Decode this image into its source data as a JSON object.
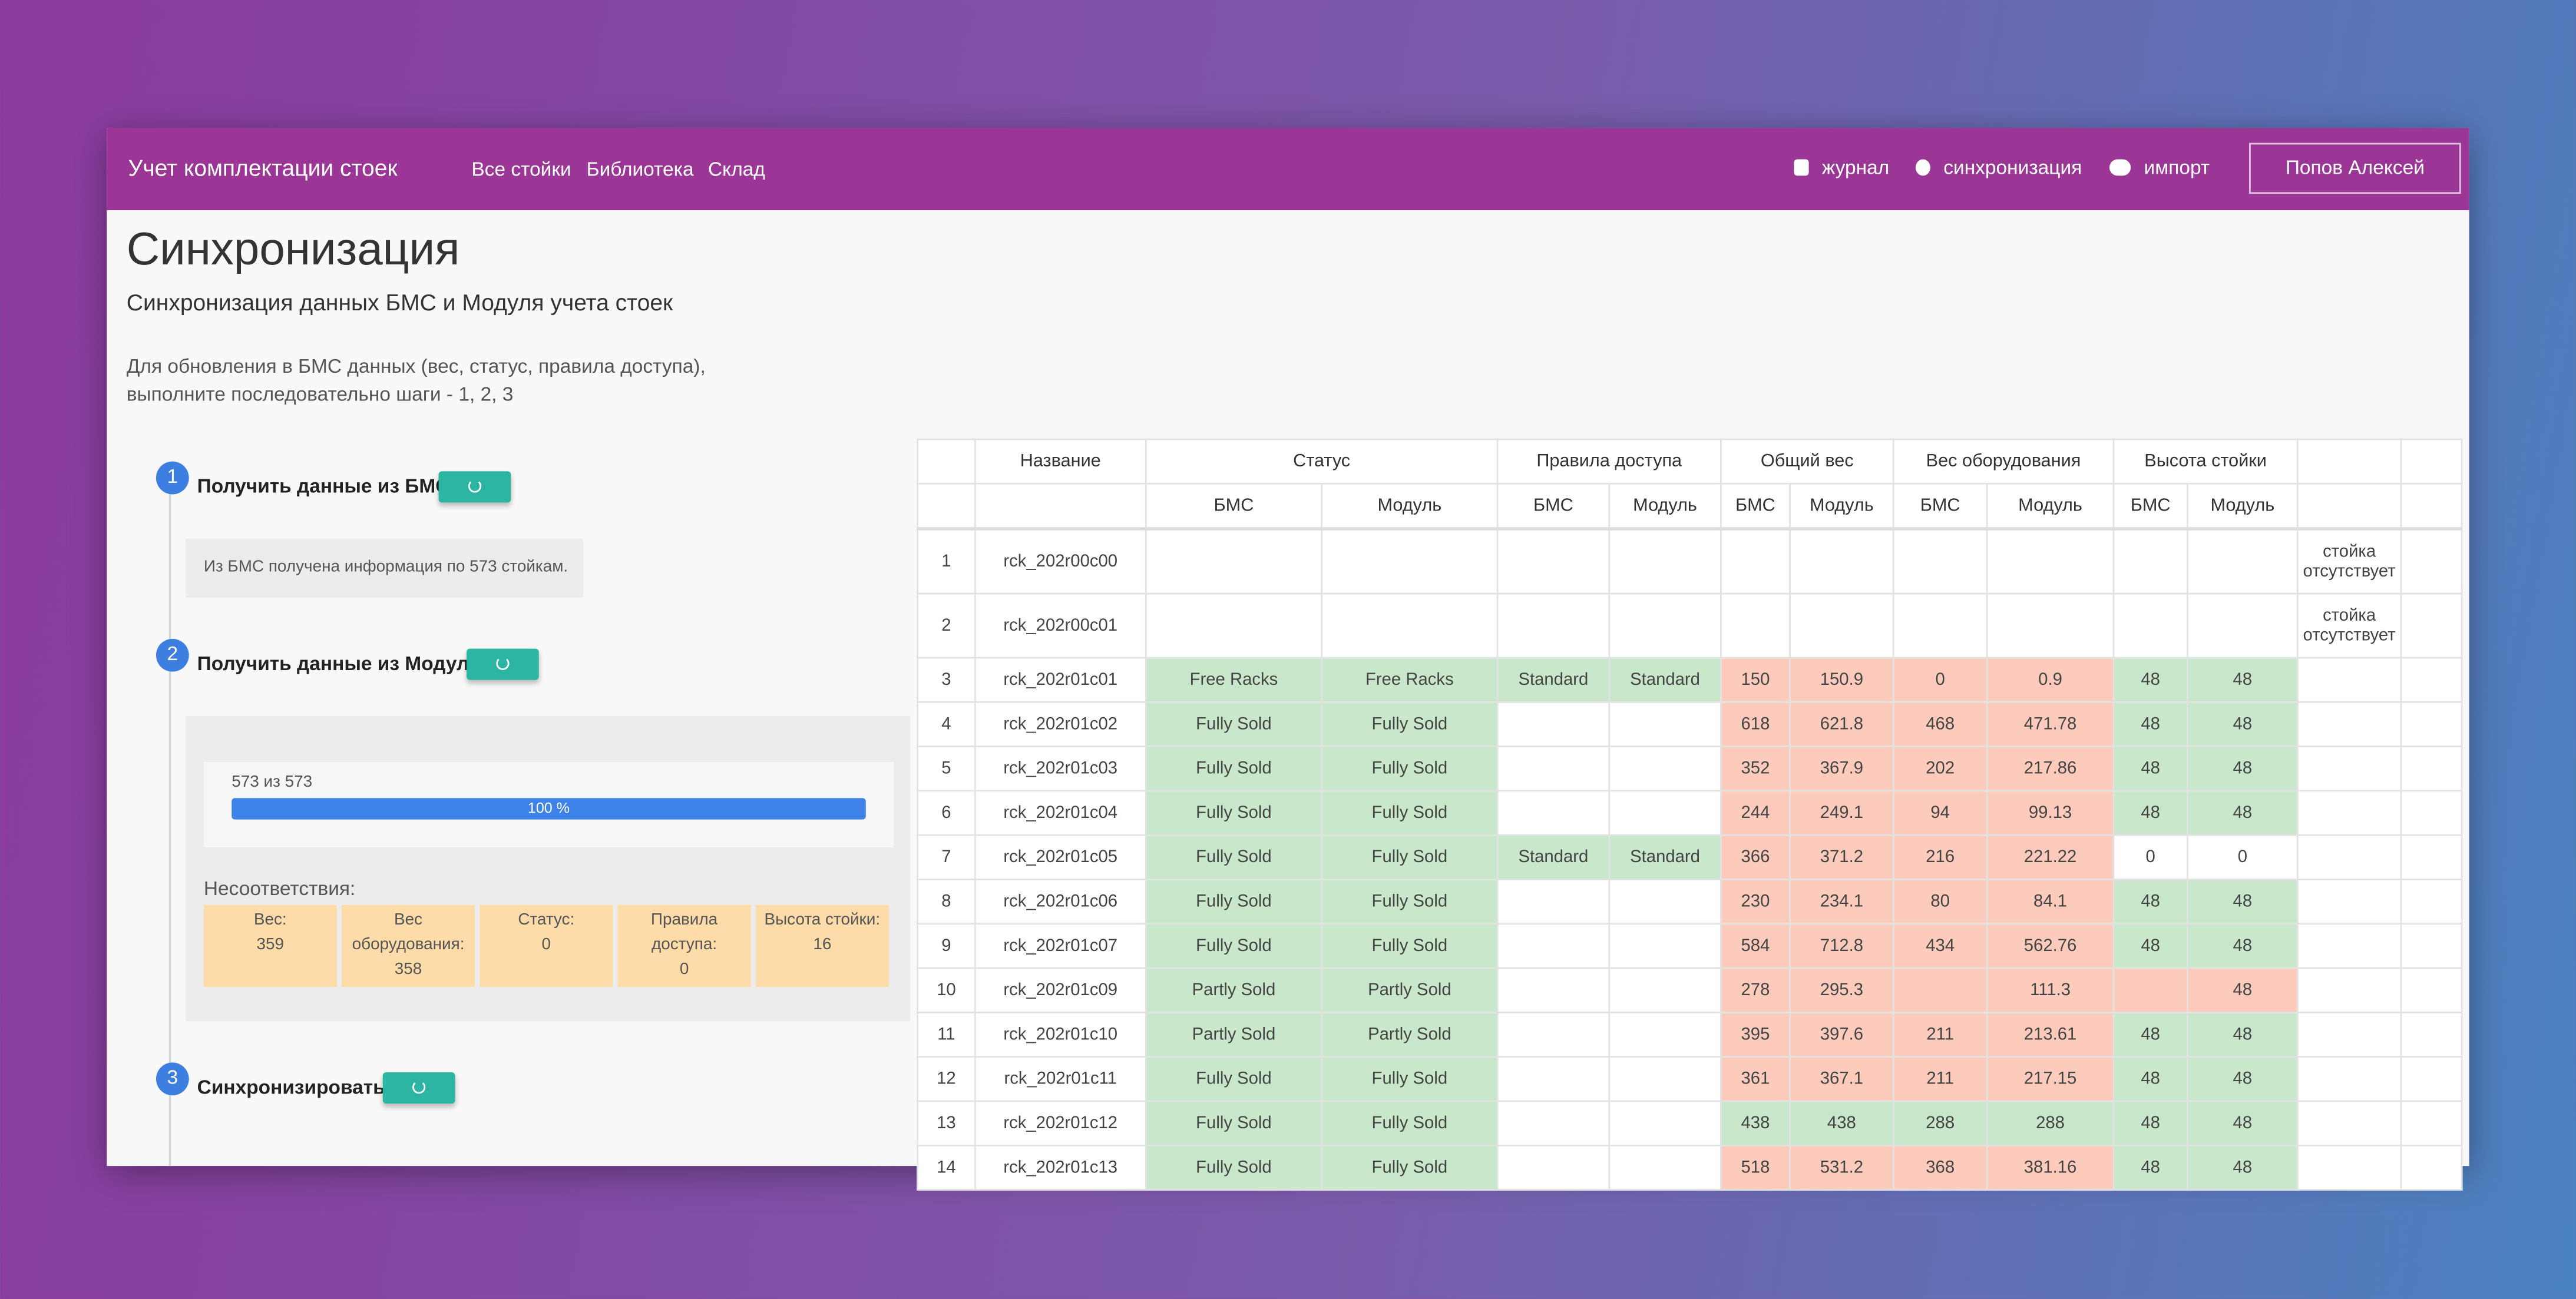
{
  "header": {
    "title": "Учет комплектации стоек",
    "nav": [
      "Все стойки",
      "Библиотека",
      "Склад"
    ],
    "actions": [
      "журнал",
      "синхронизация",
      "импорт"
    ],
    "user": "Попов Алексей"
  },
  "page": {
    "title": "Синхронизация",
    "subtitle": "Синхронизация данных БМС и Модуля учета стоек",
    "description": [
      "Для обновления в БМС данных (вес, статус, правила доступа),",
      "выполните последовательно шаги - 1, 2, 3"
    ]
  },
  "steps": [
    {
      "number": "1",
      "title": "Получить данные из БМС",
      "message": "Из БМС получена информация по 573 стойкам."
    },
    {
      "number": "2",
      "title": "Получить данные из Модуля",
      "progress_label": "573 из 573",
      "progress": 100,
      "progress_text": "100 %",
      "mismatch_title": "Несоответствия:",
      "mismatches": [
        {
          "label": "Вес:",
          "value": 359
        },
        {
          "label": "Вес оборудования:",
          "value": 358
        },
        {
          "label": "Статус:",
          "value": 0
        },
        {
          "label": "Правила доступа:",
          "value": 0
        },
        {
          "label": "Высота стойки:",
          "value": 16
        }
      ]
    },
    {
      "number": "3",
      "title": "Синхронизировать!"
    }
  ],
  "table": {
    "name_header": "Название",
    "groups": [
      {
        "name": "Статус",
        "sub": [
          "БМС",
          "Модуль"
        ]
      },
      {
        "name": "Правила доступа",
        "sub": [
          "БМС",
          "Модуль"
        ]
      },
      {
        "name": "Общий вес",
        "sub": [
          "БМС",
          "Модуль"
        ]
      },
      {
        "name": "Вес оборудования",
        "sub": [
          "БМС",
          "Модуль"
        ]
      },
      {
        "name": "Высота стойки",
        "sub": [
          "БМС",
          "Модуль"
        ]
      }
    ],
    "rows": [
      {
        "cells": [
          1,
          "rck_202r00c00",
          null,
          null,
          null,
          null,
          null,
          null,
          null,
          null,
          null,
          null,
          "стойка отсутствует"
        ],
        "fill": [
          null,
          null,
          null,
          null,
          null,
          null,
          null,
          null,
          null,
          null,
          null,
          null,
          null
        ]
      },
      {
        "cells": [
          2,
          "rck_202r00c01",
          null,
          null,
          null,
          null,
          null,
          null,
          null,
          null,
          null,
          null,
          "стойка отсутствует"
        ],
        "fill": [
          null,
          null,
          null,
          null,
          null,
          null,
          null,
          null,
          null,
          null,
          null,
          null,
          null
        ]
      },
      {
        "cells": [
          3,
          "rck_202r01c01",
          "Free Racks",
          "Free Racks",
          "Standard",
          "Standard",
          150,
          150.9,
          0,
          0.9,
          48,
          48,
          null
        ],
        "fill": [
          null,
          null,
          "g",
          "g",
          "g",
          "g",
          "r",
          "r",
          "r",
          "r",
          "g",
          "g",
          null
        ]
      },
      {
        "cells": [
          4,
          "rck_202r01c02",
          "Fully Sold",
          "Fully Sold",
          null,
          null,
          618,
          621.8,
          468,
          471.78,
          48,
          48,
          null
        ],
        "fill": [
          null,
          null,
          "g",
          "g",
          null,
          null,
          "r",
          "r",
          "r",
          "r",
          "g",
          "g",
          null
        ]
      },
      {
        "cells": [
          5,
          "rck_202r01c03",
          "Fully Sold",
          "Fully Sold",
          null,
          null,
          352,
          367.9,
          202,
          217.86,
          48,
          48,
          null
        ],
        "fill": [
          null,
          null,
          "g",
          "g",
          null,
          null,
          "r",
          "r",
          "r",
          "r",
          "g",
          "g",
          null
        ]
      },
      {
        "cells": [
          6,
          "rck_202r01c04",
          "Fully Sold",
          "Fully Sold",
          null,
          null,
          244,
          249.1,
          94,
          99.13,
          48,
          48,
          null
        ],
        "fill": [
          null,
          null,
          "g",
          "g",
          null,
          null,
          "r",
          "r",
          "r",
          "r",
          "g",
          "g",
          null
        ]
      },
      {
        "cells": [
          7,
          "rck_202r01c05",
          "Fully Sold",
          "Fully Sold",
          "Standard",
          "Standard",
          366,
          371.2,
          216,
          221.22,
          0,
          0,
          null
        ],
        "fill": [
          null,
          null,
          "g",
          "g",
          "g",
          "g",
          "r",
          "r",
          "r",
          "r",
          null,
          null,
          null
        ]
      },
      {
        "cells": [
          8,
          "rck_202r01c06",
          "Fully Sold",
          "Fully Sold",
          null,
          null,
          230,
          234.1,
          80,
          84.1,
          48,
          48,
          null
        ],
        "fill": [
          null,
          null,
          "g",
          "g",
          null,
          null,
          "r",
          "r",
          "r",
          "r",
          "g",
          "g",
          null
        ]
      },
      {
        "cells": [
          9,
          "rck_202r01c07",
          "Fully Sold",
          "Fully Sold",
          null,
          null,
          584,
          712.8,
          434,
          562.76,
          48,
          48,
          null
        ],
        "fill": [
          null,
          null,
          "g",
          "g",
          null,
          null,
          "r",
          "r",
          "r",
          "r",
          "g",
          "g",
          null
        ]
      },
      {
        "cells": [
          10,
          "rck_202r01c09",
          "Partly Sold",
          "Partly Sold",
          null,
          null,
          278,
          295.3,
          null,
          111.3,
          null,
          48,
          null
        ],
        "fill": [
          null,
          null,
          "g",
          "g",
          null,
          null,
          "r",
          "r",
          "r",
          "r",
          "r",
          "r",
          null
        ]
      },
      {
        "cells": [
          11,
          "rck_202r01c10",
          "Partly Sold",
          "Partly Sold",
          null,
          null,
          395,
          397.6,
          211,
          213.61,
          48,
          48,
          null
        ],
        "fill": [
          null,
          null,
          "g",
          "g",
          null,
          null,
          "r",
          "r",
          "r",
          "r",
          "g",
          "g",
          null
        ]
      },
      {
        "cells": [
          12,
          "rck_202r01c11",
          "Fully Sold",
          "Fully Sold",
          null,
          null,
          361,
          367.1,
          211,
          217.15,
          48,
          48,
          null
        ],
        "fill": [
          null,
          null,
          "g",
          "g",
          null,
          null,
          "r",
          "r",
          "r",
          "r",
          "g",
          "g",
          null
        ]
      },
      {
        "cells": [
          13,
          "rck_202r01c12",
          "Fully Sold",
          "Fully Sold",
          null,
          null,
          438,
          438,
          288,
          288,
          48,
          48,
          null
        ],
        "fill": [
          null,
          null,
          "g",
          "g",
          null,
          null,
          "g",
          "g",
          "g",
          "g",
          "g",
          "g",
          null
        ]
      },
      {
        "cells": [
          14,
          "rck_202r01c13",
          "Fully Sold",
          "Fully Sold",
          null,
          null,
          518,
          531.2,
          368,
          381.16,
          48,
          48,
          null
        ],
        "fill": [
          null,
          null,
          "g",
          "g",
          null,
          null,
          "r",
          "r",
          "r",
          "r",
          "g",
          "g",
          null
        ]
      }
    ]
  }
}
